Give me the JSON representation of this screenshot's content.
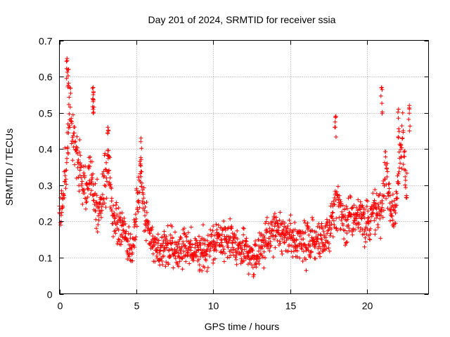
{
  "chart_data": {
    "type": "scatter",
    "title": "Day 201 of 2024, SRMTID for receiver ssia",
    "xlabel": "GPS time / hours",
    "ylabel": "SRMTID / TECUs",
    "xlim": [
      0,
      24
    ],
    "ylim": [
      0,
      0.7
    ],
    "x_ticks": [
      0,
      5,
      10,
      15,
      20
    ],
    "y_ticks": [
      0,
      0.1,
      0.2,
      0.3,
      0.4,
      0.5,
      0.6,
      0.7
    ],
    "x_tick_labels": [
      "0",
      "5",
      "10",
      "15",
      "20"
    ],
    "y_tick_labels": [
      "0",
      "0.1",
      "0.2",
      "0.3",
      "0.4",
      "0.5",
      "0.6",
      "0.7"
    ],
    "grid": true,
    "marker": "+",
    "color": "#ff0000",
    "trend": {
      "hours": [
        0,
        0.25,
        0.5,
        0.7,
        0.9,
        1.2,
        1.5,
        1.8,
        2.0,
        2.3,
        2.6,
        2.9,
        3.2,
        3.5,
        3.8,
        4.1,
        4.4,
        4.7,
        5.0,
        5.3,
        5.6,
        5.9,
        6.2,
        6.5,
        6.8,
        7.1,
        7.5,
        8.0,
        8.5,
        9.0,
        9.5,
        10.0,
        10.5,
        11.0,
        11.5,
        12.0,
        12.3,
        12.6,
        12.9,
        13.2,
        13.5,
        14.0,
        14.5,
        15.0,
        15.5,
        16.0,
        16.5,
        17.0,
        17.5,
        17.8,
        18.1,
        18.4,
        18.7,
        19.0,
        19.3,
        19.6,
        19.9,
        20.2,
        20.5,
        20.8,
        21.0,
        21.2,
        21.5,
        21.8,
        22.0,
        22.3,
        22.6
      ],
      "values": [
        0.22,
        0.27,
        0.4,
        0.52,
        0.45,
        0.37,
        0.32,
        0.3,
        0.33,
        0.26,
        0.24,
        0.3,
        0.36,
        0.2,
        0.19,
        0.18,
        0.15,
        0.12,
        0.21,
        0.32,
        0.2,
        0.16,
        0.11,
        0.11,
        0.14,
        0.13,
        0.12,
        0.13,
        0.12,
        0.11,
        0.12,
        0.14,
        0.15,
        0.15,
        0.13,
        0.12,
        0.1,
        0.09,
        0.11,
        0.14,
        0.15,
        0.17,
        0.16,
        0.15,
        0.15,
        0.14,
        0.14,
        0.15,
        0.17,
        0.22,
        0.26,
        0.22,
        0.18,
        0.22,
        0.21,
        0.22,
        0.2,
        0.21,
        0.24,
        0.22,
        0.25,
        0.36,
        0.25,
        0.22,
        0.32,
        0.45,
        0.25
      ],
      "spread": 0.06,
      "peaks": [
        {
          "hour": 0.5,
          "value": 0.65
        },
        {
          "hour": 0.6,
          "value": 0.62
        },
        {
          "hour": 2.2,
          "value": 0.57
        },
        {
          "hour": 2.2,
          "value": 0.55
        },
        {
          "hour": 3.15,
          "value": 0.46
        },
        {
          "hour": 5.3,
          "value": 0.43
        },
        {
          "hour": 17.95,
          "value": 0.49
        },
        {
          "hour": 20.95,
          "value": 0.57
        },
        {
          "hour": 22.05,
          "value": 0.51
        },
        {
          "hour": 22.75,
          "value": 0.52
        }
      ],
      "point_count": 1500
    }
  }
}
